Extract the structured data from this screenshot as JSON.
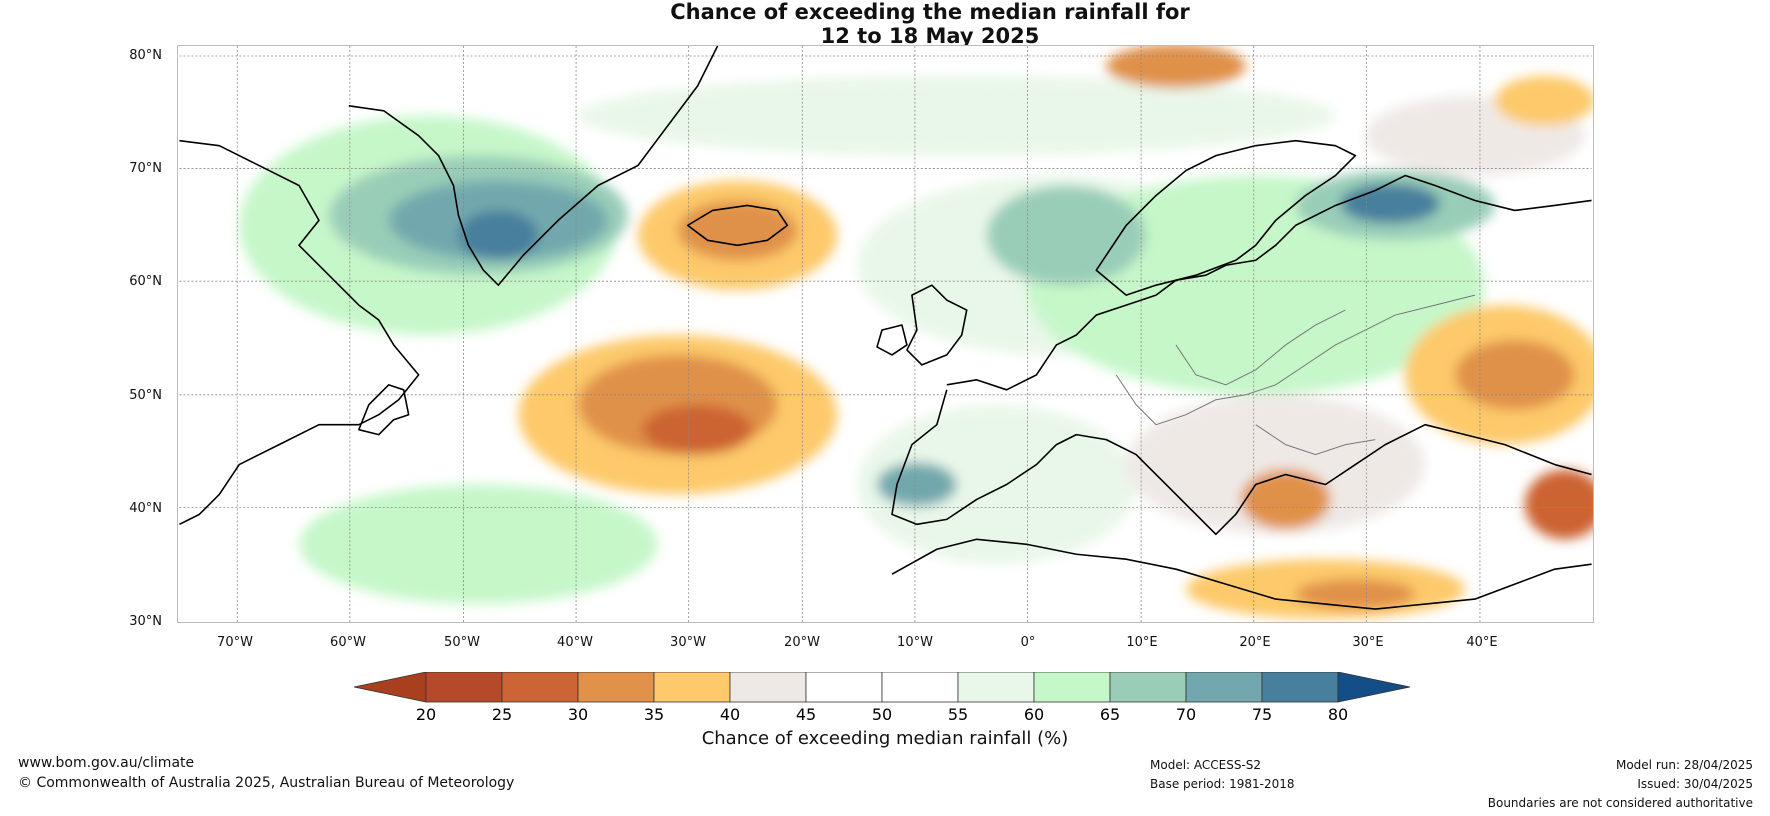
{
  "title": {
    "line1": "Chance of exceeding the median rainfall for",
    "line2": "12 to 18 May 2025"
  },
  "latitude_labels": [
    "80°N",
    "70°N",
    "60°N",
    "50°N",
    "40°N",
    "30°N"
  ],
  "longitude_labels": [
    "70°W",
    "60°W",
    "50°W",
    "40°W",
    "30°W",
    "20°W",
    "10°W",
    "0°",
    "10°E",
    "20°E",
    "30°E",
    "40°E"
  ],
  "colorbar": {
    "title": "Chance of exceeding median rainfall (%)",
    "ticks": [
      "20",
      "25",
      "30",
      "35",
      "40",
      "45",
      "50",
      "55",
      "60",
      "65",
      "70",
      "75",
      "80"
    ],
    "colors": [
      "#a8401f",
      "#b6492a",
      "#cc6433",
      "#e0914a",
      "#fdc96a",
      "#efe9e6",
      "#ffffff",
      "#ffffff",
      "#e9f7e9",
      "#c6f7c9",
      "#99cdb8",
      "#72a8ad",
      "#477f9d",
      "#154d86"
    ]
  },
  "footer": {
    "website": "www.bom.gov.au/climate",
    "copyright": "© Commonwealth of Australia 2025, Australian Bureau of Meteorology",
    "model": "Model: ACCESS-S2",
    "base_period": "Base period: 1981-2018",
    "model_run": "Model run: 28/04/2025",
    "issued": "Issued: 30/04/2025",
    "disclaimer": "Boundaries are not considered authoritative"
  }
}
